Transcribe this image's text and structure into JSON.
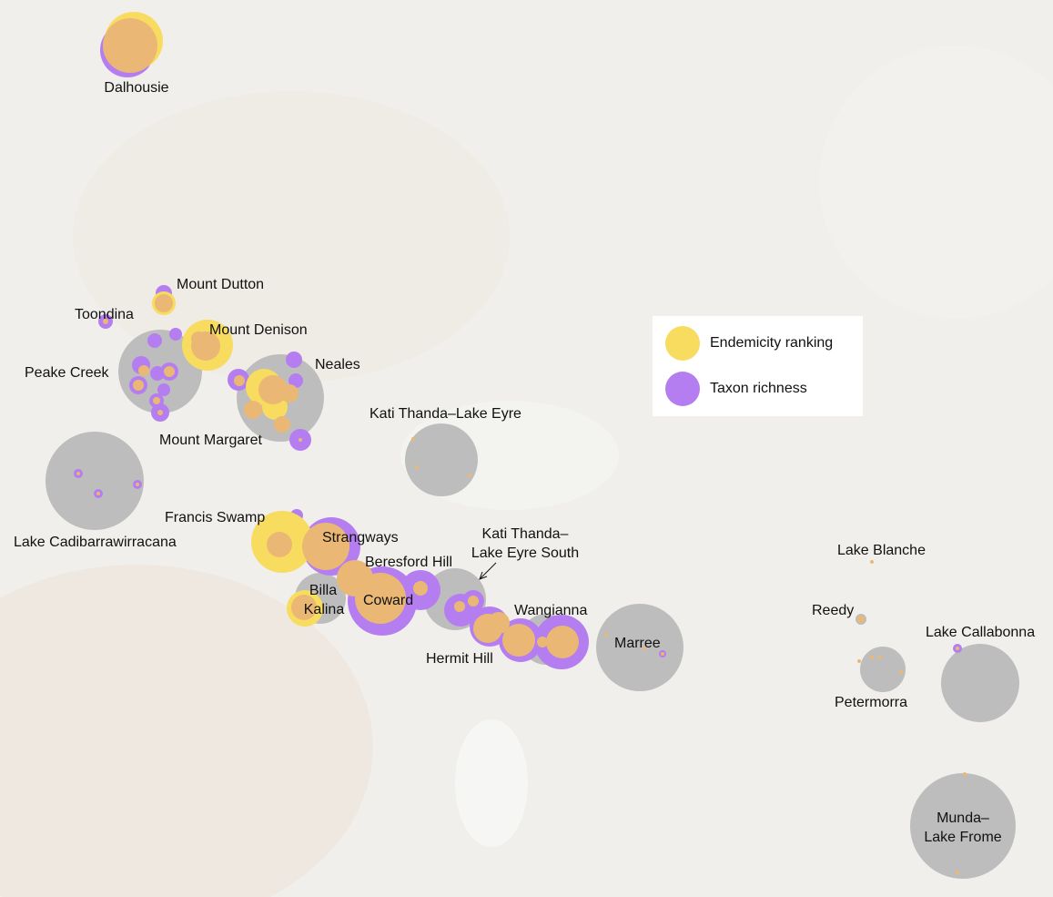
{
  "colors": {
    "endemicity": "#f7dc5f",
    "richness": "#b57ef0",
    "overlap": "#eab874",
    "cluster_grey": "#bdbdbd",
    "background": "#f1efec"
  },
  "legend": {
    "endemicity_label": "Endemicity ranking",
    "richness_label": "Taxon richness"
  },
  "places": {
    "dalhousie": "Dalhousie",
    "mount_dutton": "Mount Dutton",
    "toondina": "Toondina",
    "mount_denison": "Mount Denison",
    "peake_creek": "Peake Creek",
    "neales": "Neales",
    "kati_thanda": "Kati Thanda–Lake Eyre",
    "mount_margaret": "Mount Margaret",
    "lake_cadibarrawirracana": "Lake Cadibarrawirracana",
    "francis_swamp": "Francis Swamp",
    "strangways": "Strangways",
    "kati_thanda_south_line1": "Kati Thanda–",
    "kati_thanda_south_line2": "Lake Eyre South",
    "beresford_hill": "Beresford Hill",
    "billa_kalina_line1": "Billa",
    "billa_kalina_line2": "Kalina",
    "coward": "Coward",
    "wangianna": "Wangianna",
    "hermit_hill": "Hermit Hill",
    "marree": "Marree",
    "lake_blanche": "Lake Blanche",
    "reedy": "Reedy",
    "lake_callabonna": "Lake Callabonna",
    "petermorra": "Petermorra",
    "munda_line1": "Munda–",
    "munda_line2": "Lake Frome"
  }
}
